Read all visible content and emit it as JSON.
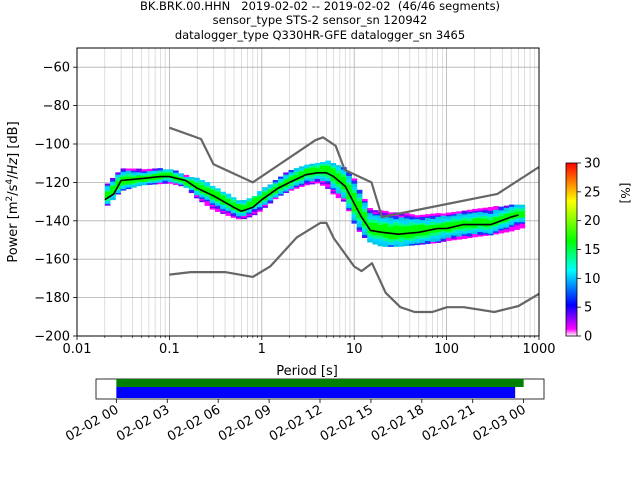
{
  "header": {
    "line1": "BK.BRK.00.HHN   2019-02-02 -- 2019-02-02  (46/46 segments)",
    "line2": "sensor_type STS-2 sensor_sn 120942",
    "line3": "datalogger_type Q330HR-GFE datalogger_sn 3465"
  },
  "chart_data": [
    {
      "type": "heatmap",
      "title": "BK.BRK.00.HHN   2019-02-02 -- 2019-02-02  (46/46 segments)",
      "xlabel": "Period [s]",
      "ylabel": "Power [m²/s⁴/Hz] [dB]",
      "xscale": "log",
      "xlim": [
        0.01,
        1000
      ],
      "ylim": [
        -200,
        -50
      ],
      "xticks": [
        "0.01",
        "0.1",
        "1",
        "10",
        "100",
        "1000"
      ],
      "yticks": [
        "−60",
        "−80",
        "−100",
        "−120",
        "−140",
        "−160",
        "−180",
        "−200"
      ],
      "grid": true,
      "colorbar": {
        "label": "[%]",
        "range": [
          0,
          30
        ],
        "ticks": [
          "0",
          "5",
          "10",
          "15",
          "20",
          "25",
          "30"
        ],
        "colors": [
          "#ffffff",
          "#ff00ff",
          "#0000ff",
          "#00ffff",
          "#00ff00",
          "#ffff00",
          "#ff0000"
        ]
      },
      "mean_curve": {
        "color": "#000000",
        "x": [
          0.02,
          0.025,
          0.03,
          0.05,
          0.08,
          0.1,
          0.15,
          0.2,
          0.3,
          0.5,
          0.6,
          0.8,
          1,
          1.5,
          2,
          3,
          4,
          5,
          6,
          8,
          10,
          12,
          15,
          20,
          30,
          50,
          80,
          100,
          150,
          200,
          300,
          500,
          600
        ],
        "y": [
          -129,
          -126,
          -119,
          -118,
          -117,
          -117,
          -119,
          -123,
          -127,
          -133,
          -135,
          -133,
          -129,
          -123,
          -120,
          -116,
          -115,
          -115,
          -117,
          -122,
          -131,
          -138,
          -145,
          -146,
          -147,
          -146,
          -144,
          -144,
          -142,
          -142,
          -142,
          -138,
          -137
        ]
      },
      "mode_curve": {
        "color": "#00ff00",
        "x": [
          0.02,
          0.03,
          0.05,
          0.1,
          0.2,
          0.3,
          0.5,
          0.6,
          1,
          2,
          3,
          5,
          8,
          10,
          15,
          20,
          30,
          50,
          100,
          200,
          300,
          600
        ],
        "y": [
          -128,
          -119,
          -118,
          -116,
          -122,
          -126,
          -132,
          -134,
          -128,
          -119,
          -115,
          -113,
          -121,
          -130,
          -144,
          -145,
          -146,
          -145,
          -143,
          -141,
          -141,
          -136
        ]
      },
      "psd_spread": {
        "x": [
          0.02,
          0.03,
          0.05,
          0.1,
          0.15,
          0.2,
          0.3,
          0.5,
          0.6,
          0.8,
          1,
          1.5,
          2,
          3,
          4,
          5,
          6,
          8,
          10,
          12,
          15,
          20,
          30,
          50,
          80,
          100,
          150,
          200,
          300,
          500,
          700
        ],
        "upper": [
          -122,
          -113,
          -113,
          -113,
          -116,
          -118,
          -122,
          -128,
          -130,
          -128,
          -124,
          -118,
          -114,
          -111,
          -110,
          -109,
          -110,
          -113,
          -118,
          -126,
          -134,
          -135,
          -136,
          -137,
          -136,
          -136,
          -135,
          -134,
          -133,
          -132,
          -132
        ],
        "lower": [
          -133,
          -124,
          -121,
          -120,
          -122,
          -128,
          -134,
          -138,
          -139,
          -137,
          -134,
          -127,
          -124,
          -121,
          -120,
          -122,
          -126,
          -130,
          -141,
          -147,
          -151,
          -153,
          -153,
          -152,
          -151,
          -150,
          -149,
          -148,
          -147,
          -145,
          -143
        ]
      },
      "nhnm": {
        "label": "",
        "color": "#666666",
        "x": [
          0.1,
          0.22,
          0.3,
          0.8,
          3.8,
          4.6,
          6.3,
          7.9,
          15.4,
          20,
          354.8,
          1000
        ],
        "y": [
          -91.5,
          -97.4,
          -110.5,
          -120,
          -98,
          -96.5,
          -101,
          -113.5,
          -120,
          -138,
          -126,
          -112
        ]
      },
      "nlnm": {
        "label": "",
        "color": "#666666",
        "x": [
          0.1,
          0.17,
          0.4,
          0.8,
          1.24,
          2.4,
          4.3,
          5,
          6,
          10,
          12,
          15.6,
          21.9,
          31.6,
          45,
          70,
          101,
          154,
          328,
          600,
          1000
        ],
        "y": [
          -168,
          -166.7,
          -166.7,
          -169.2,
          -163.7,
          -148.6,
          -141.1,
          -141.1,
          -149,
          -163.8,
          -166.2,
          -162.1,
          -177.5,
          -185,
          -187.5,
          -187.5,
          -185,
          -185,
          -187.5,
          -184.4,
          -178
        ]
      }
    },
    {
      "type": "timeline",
      "xticks": [
        "02-02 00",
        "02-02 03",
        "02-02 06",
        "02-02 09",
        "02-02 12",
        "02-02 15",
        "02-02 18",
        "02-02 21",
        "02-03 00"
      ],
      "xlim_hours": [
        -1.2,
        25.2
      ],
      "bars": [
        {
          "name": "",
          "color": "#008000",
          "start_hour": 0,
          "end_hour": 24.0
        },
        {
          "name": "",
          "color": "#0000ff",
          "start_hour": 0,
          "end_hour": 23.5
        }
      ]
    }
  ]
}
